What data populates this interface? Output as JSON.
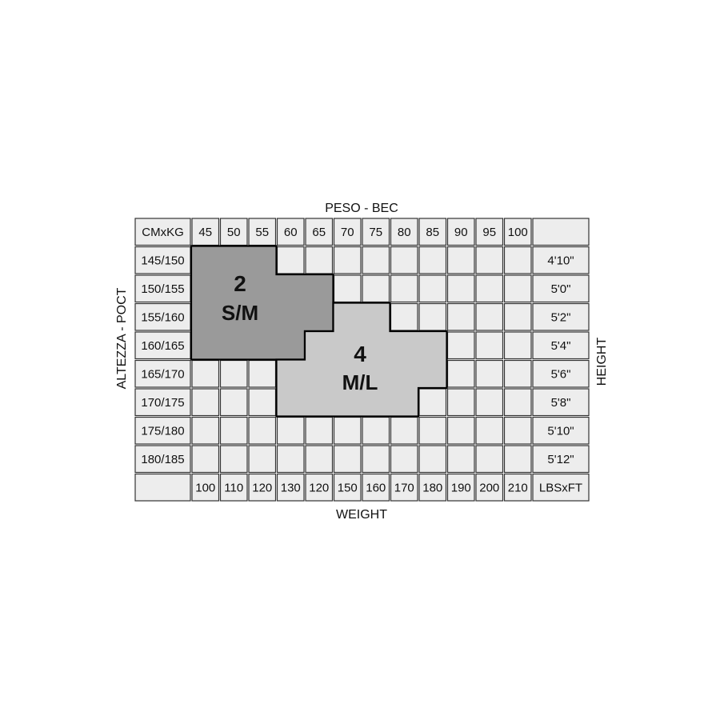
{
  "chart_data": {
    "type": "table",
    "top_label": "PESO - BEC",
    "bottom_label": "WEIGHT",
    "left_label": "ALTEZZA - POCT",
    "right_label": "HEIGHT",
    "corner_top_left": "CMxKG",
    "corner_bottom_right": "LBSxFT",
    "kg": [
      "45",
      "50",
      "55",
      "60",
      "65",
      "70",
      "75",
      "80",
      "85",
      "90",
      "95",
      "100"
    ],
    "lbs": [
      "100",
      "110",
      "120",
      "130",
      "120",
      "150",
      "160",
      "170",
      "180",
      "190",
      "200",
      "210"
    ],
    "cm": [
      "145/150",
      "150/155",
      "155/160",
      "160/165",
      "165/170",
      "170/175",
      "175/180",
      "180/185"
    ],
    "ft": [
      "4'10\"",
      "5'0\"",
      "5'2\"",
      "5'4\"",
      "5'6\"",
      "5'8\"",
      "5'10\"",
      "5'12\""
    ],
    "sizes": [
      {
        "number": "2",
        "name": "S/M",
        "color": "#9a9a9a",
        "ranges": [
          {
            "cm": "145/150",
            "kg": [
              "45",
              "55"
            ]
          },
          {
            "cm": "150/155",
            "kg": [
              "45",
              "65"
            ]
          },
          {
            "cm": "155/160",
            "kg": [
              "45",
              "65"
            ]
          },
          {
            "cm": "160/165",
            "kg": [
              "45",
              "60"
            ]
          }
        ]
      },
      {
        "number": "4",
        "name": "M/L",
        "color": "#c9c9c9",
        "ranges": [
          {
            "cm": "155/160",
            "kg": [
              "70",
              "75"
            ]
          },
          {
            "cm": "160/165",
            "kg": [
              "65",
              "85"
            ]
          },
          {
            "cm": "165/170",
            "kg": [
              "60",
              "85"
            ]
          },
          {
            "cm": "170/175",
            "kg": [
              "60",
              "80"
            ]
          }
        ]
      }
    ],
    "cell_color": "#ededed",
    "grid_color": "#333333"
  }
}
